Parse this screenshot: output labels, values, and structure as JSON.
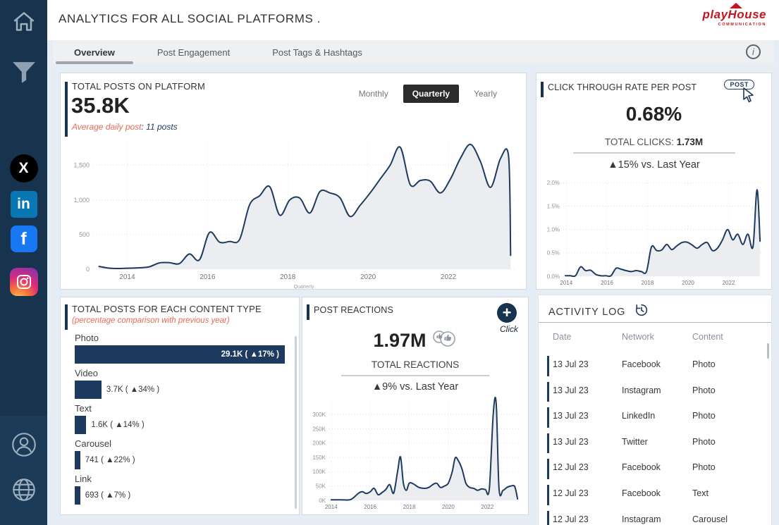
{
  "header": {
    "title": "ANALYTICS FOR ALL SOCIAL PLATFORMS .",
    "logo_line1": "playHouse",
    "logo_line2": "COMMUNICATION"
  },
  "tabs": [
    {
      "label": "Overview",
      "active": true
    },
    {
      "label": "Post Engagement",
      "active": false
    },
    {
      "label": "Post Tags & Hashtags",
      "active": false
    }
  ],
  "info_label": "i",
  "sidebar": {
    "icons": [
      "home",
      "filter",
      "x-twitter",
      "linkedin",
      "facebook",
      "instagram",
      "profile",
      "globe"
    ],
    "x_glyph": "X",
    "linkedin_glyph": "in",
    "facebook_glyph": "f"
  },
  "cards": {
    "total_posts": {
      "title": "TOTAL POSTS ON PLATFORM",
      "value": "35.8K",
      "subtitle_label": "Average daily post",
      "subtitle_value": ": 11 posts",
      "toggles": [
        "Monthly",
        "Quarterly",
        "Yearly"
      ],
      "active_toggle": "Quarterly"
    },
    "ctr": {
      "title": "CLICK THROUGH RATE PER POST",
      "badge": "POST",
      "value": "0.68%",
      "total_label": "TOTAL CLICKS: ",
      "total_value": "1.73M",
      "delta": "▲15% vs. Last Year"
    },
    "content_type": {
      "title": "TOTAL POSTS FOR EACH CONTENT TYPE",
      "subtitle": "(percentage comparison with previous year)"
    },
    "reactions": {
      "title": "POST REACTIONS",
      "action_label": "Click",
      "value": "1.97M",
      "total_label": "TOTAL REACTIONS",
      "delta": "▲9% vs. Last Year"
    },
    "activity": {
      "title": "ACTIVITY LOG",
      "columns": [
        "Date",
        "Network",
        "Content"
      ],
      "rows": [
        [
          "13 Jul 23",
          "Facebook",
          "Photo"
        ],
        [
          "13 Jul 23",
          "Instagram",
          "Photo"
        ],
        [
          "13 Jul 23",
          "LinkedIn",
          "Photo"
        ],
        [
          "13 Jul 23",
          "Twitter",
          "Photo"
        ],
        [
          "12 Jul 23",
          "Facebook",
          "Photo"
        ],
        [
          "12 Jul 23",
          "Facebook",
          "Text"
        ],
        [
          "12 Jul 23",
          "Instagram",
          "Carousel"
        ]
      ]
    }
  },
  "chart_data": [
    {
      "type": "area",
      "title": "Total posts on platform (quarterly)",
      "xlabel": "Quarterly",
      "xlim": [
        2013.15,
        2023.65
      ],
      "ylim": [
        0,
        1850
      ],
      "yticks": [
        {
          "v": 0,
          "label": "0"
        },
        {
          "v": 500,
          "label": "500"
        },
        {
          "v": 1000,
          "label": "1,000"
        },
        {
          "v": 1500,
          "label": "1,500"
        }
      ],
      "xticks": [
        {
          "v": 2014,
          "label": "2014"
        },
        {
          "v": 2016,
          "label": "2016"
        },
        {
          "v": 2018,
          "label": "2018"
        },
        {
          "v": 2020,
          "label": "2020"
        },
        {
          "v": 2022,
          "label": "2022"
        }
      ],
      "x": [
        2013.3,
        2013.55,
        2013.8,
        2014.05,
        2014.3,
        2014.55,
        2014.8,
        2015.05,
        2015.3,
        2015.55,
        2015.8,
        2016.05,
        2016.3,
        2016.55,
        2016.8,
        2017.05,
        2017.3,
        2017.55,
        2017.8,
        2018.05,
        2018.3,
        2018.55,
        2018.8,
        2019.05,
        2019.3,
        2019.55,
        2019.8,
        2020.05,
        2020.3,
        2020.55,
        2020.8,
        2021.05,
        2021.3,
        2021.55,
        2021.8,
        2022.05,
        2022.3,
        2022.55,
        2022.8,
        2023.05,
        2023.3,
        2023.5,
        2023.55
      ],
      "y": [
        40,
        15,
        10,
        15,
        20,
        35,
        90,
        95,
        80,
        220,
        135,
        530,
        390,
        400,
        430,
        930,
        1060,
        1190,
        780,
        1000,
        1025,
        810,
        1120,
        1100,
        1030,
        760,
        920,
        1100,
        1300,
        1500,
        1760,
        1220,
        1280,
        1270,
        1100,
        1300,
        1600,
        1800,
        1550,
        1180,
        1600,
        1620,
        200
      ]
    },
    {
      "type": "area",
      "title": "Click through rate per post",
      "xlim": [
        2013.85,
        2023.65
      ],
      "ylim": [
        0,
        2.05
      ],
      "yticks": [
        {
          "v": 0,
          "label": "0.0%"
        },
        {
          "v": 0.5,
          "label": "0.5%"
        },
        {
          "v": 1,
          "label": "1.0%"
        },
        {
          "v": 1.5,
          "label": "1.5%"
        },
        {
          "v": 2,
          "label": "2.0%"
        }
      ],
      "xticks": [
        {
          "v": 2014,
          "label": "2014"
        },
        {
          "v": 2016,
          "label": "2016"
        },
        {
          "v": 2018,
          "label": "2018"
        },
        {
          "v": 2020,
          "label": "2020"
        },
        {
          "v": 2022,
          "label": "2022"
        }
      ],
      "x": [
        2013.95,
        2014.2,
        2014.45,
        2014.7,
        2014.95,
        2015.2,
        2015.45,
        2015.7,
        2015.95,
        2016.2,
        2016.45,
        2016.7,
        2016.95,
        2017.2,
        2017.45,
        2017.7,
        2017.95,
        2018.2,
        2018.45,
        2018.7,
        2018.95,
        2019.2,
        2019.45,
        2019.7,
        2019.95,
        2020.2,
        2020.45,
        2020.7,
        2020.95,
        2021.2,
        2021.45,
        2021.7,
        2021.95,
        2022.2,
        2022.45,
        2022.7,
        2022.95,
        2023.2,
        2023.4,
        2023.55
      ],
      "y": [
        0.01,
        0.01,
        0.01,
        0.2,
        0.12,
        0.13,
        0.04,
        0.01,
        0.01,
        0.01,
        0.17,
        0.15,
        0.12,
        0.1,
        0.12,
        0.1,
        0.1,
        0.63,
        0.55,
        0.56,
        0.68,
        0.57,
        0.65,
        0.72,
        0.73,
        0.67,
        0.6,
        0.68,
        0.72,
        0.55,
        0.6,
        0.78,
        1.0,
        0.78,
        0.9,
        0.68,
        0.9,
        0.63,
        1.85,
        0.75
      ]
    },
    {
      "type": "area",
      "title": "Post reactions (thousands)",
      "xlim": [
        2013.9,
        2023.65
      ],
      "ylim": [
        0,
        345
      ],
      "yticks": [
        {
          "v": 0,
          "label": "0K"
        },
        {
          "v": 50,
          "label": "50K"
        },
        {
          "v": 100,
          "label": "100K"
        },
        {
          "v": 150,
          "label": "150K"
        },
        {
          "v": 200,
          "label": "200K"
        },
        {
          "v": 250,
          "label": "250K"
        },
        {
          "v": 300,
          "label": "300K"
        }
      ],
      "xticks": [
        {
          "v": 2014,
          "label": "2014"
        },
        {
          "v": 2016,
          "label": "2016"
        },
        {
          "v": 2018,
          "label": "2018"
        },
        {
          "v": 2020,
          "label": "2020"
        },
        {
          "v": 2022,
          "label": "2022"
        }
      ],
      "x": [
        2014,
        2014.5,
        2015,
        2015.4,
        2015.6,
        2015.8,
        2016,
        2016.2,
        2016.4,
        2016.6,
        2016.8,
        2017,
        2017.2,
        2017.4,
        2017.55,
        2017.7,
        2017.85,
        2018,
        2018.2,
        2018.5,
        2018.8,
        2019,
        2019.2,
        2019.4,
        2019.6,
        2019.8,
        2020,
        2020.2,
        2020.35,
        2020.5,
        2020.7,
        2020.9,
        2021.1,
        2021.3,
        2021.5,
        2021.7,
        2021.9,
        2022.1,
        2022.3,
        2022.45,
        2022.6,
        2022.8,
        2023,
        2023.2,
        2023.4,
        2023.55
      ],
      "y": [
        2,
        2,
        3,
        25,
        30,
        24,
        30,
        42,
        20,
        27,
        38,
        55,
        25,
        100,
        152,
        60,
        35,
        60,
        58,
        45,
        42,
        45,
        55,
        60,
        45,
        50,
        60,
        100,
        148,
        140,
        110,
        60,
        45,
        42,
        35,
        40,
        38,
        40,
        300,
        340,
        40,
        35,
        45,
        50,
        48,
        5
      ]
    },
    {
      "type": "bar",
      "title": "Total posts for each content type",
      "categories": [
        "Photo",
        "Video",
        "Text",
        "Carousel",
        "Link"
      ],
      "values": [
        29100,
        3700,
        1600,
        741,
        693
      ],
      "labels": [
        "29.1K ( ▲17% )",
        "3.7K ( ▲34% )",
        "1.6K ( ▲14% )",
        "741 ( ▲22% )",
        "693 ( ▲7% )"
      ]
    }
  ],
  "colors": {
    "sidebar": "#17334e",
    "accent_navy": "#1e3a5e",
    "highlight_red": "#e96a57",
    "logo_red": "#c4161c",
    "toggle_active_bg": "#2b2b2b",
    "area_fill": "#ebedf0"
  }
}
